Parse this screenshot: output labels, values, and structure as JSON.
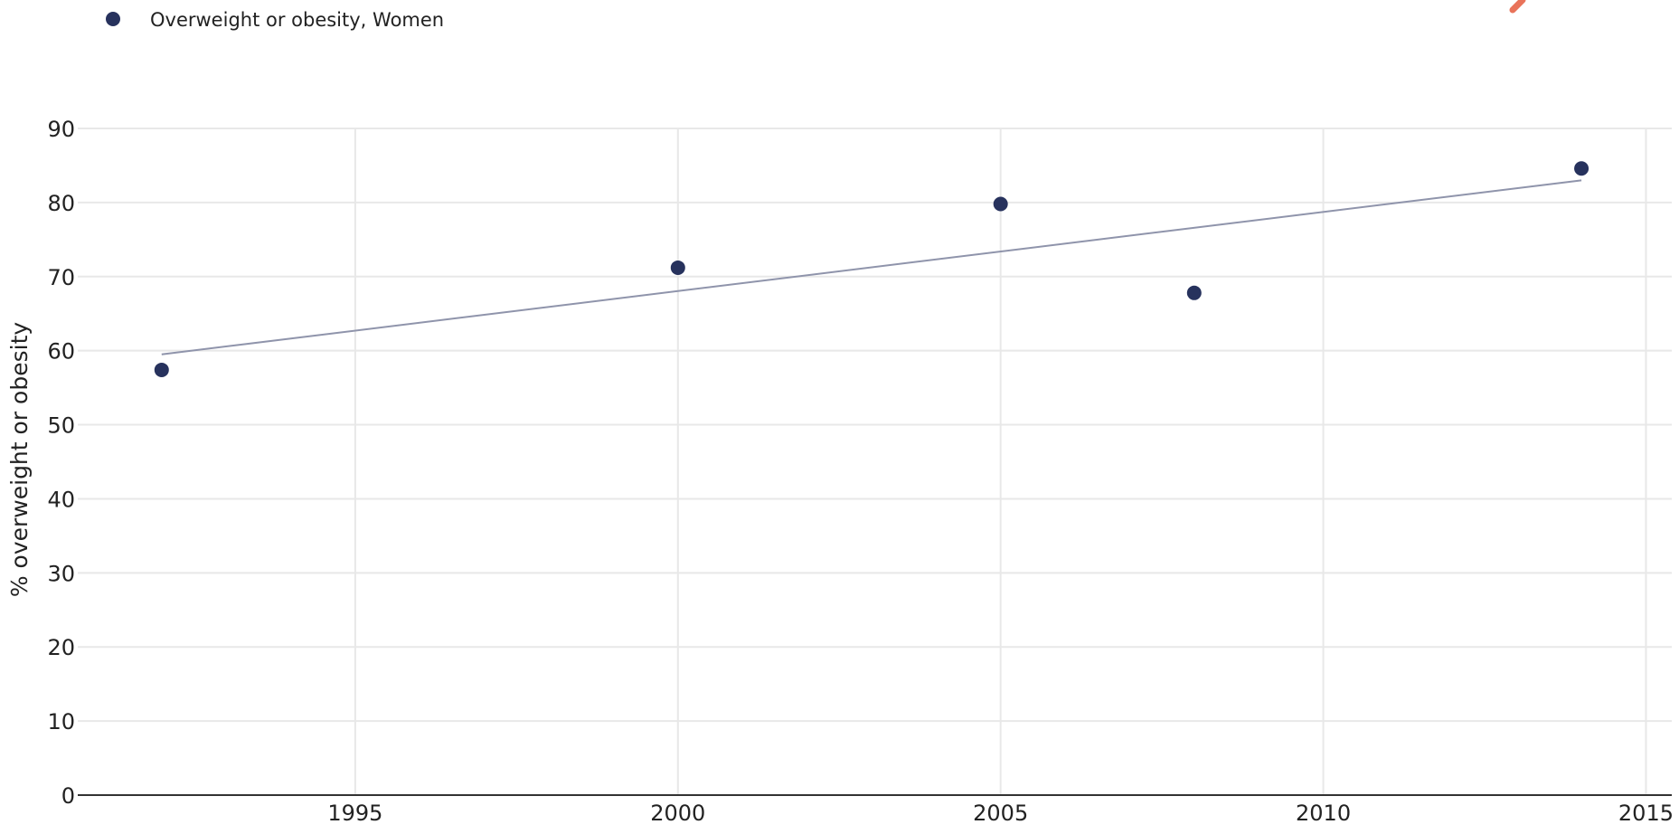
{
  "chart_data": {
    "type": "scatter",
    "title": "",
    "xlabel": "",
    "ylabel": "% overweight or obesity",
    "x_ticks": [
      1995,
      2000,
      2005,
      2010,
      2015
    ],
    "y_ticks": [
      0,
      10,
      20,
      30,
      40,
      50,
      60,
      70,
      80,
      90
    ],
    "xlim": [
      1990.7,
      2015.4
    ],
    "ylim": [
      0,
      90
    ],
    "grid": true,
    "legend_position": "top-left",
    "series": [
      {
        "name": "Overweight or obesity, Women",
        "color": "#27325d",
        "points": [
          {
            "x": 1992,
            "y": 57.4
          },
          {
            "x": 2000,
            "y": 71.2
          },
          {
            "x": 2005,
            "y": 79.8
          },
          {
            "x": 2008,
            "y": 67.8
          },
          {
            "x": 2014,
            "y": 84.6
          }
        ]
      }
    ],
    "trend_line": {
      "color": "#8f94ab",
      "start": {
        "x": 1992,
        "y": 59.5
      },
      "end": {
        "x": 2014,
        "y": 83.0
      }
    }
  },
  "accent_color": "#e9735a"
}
